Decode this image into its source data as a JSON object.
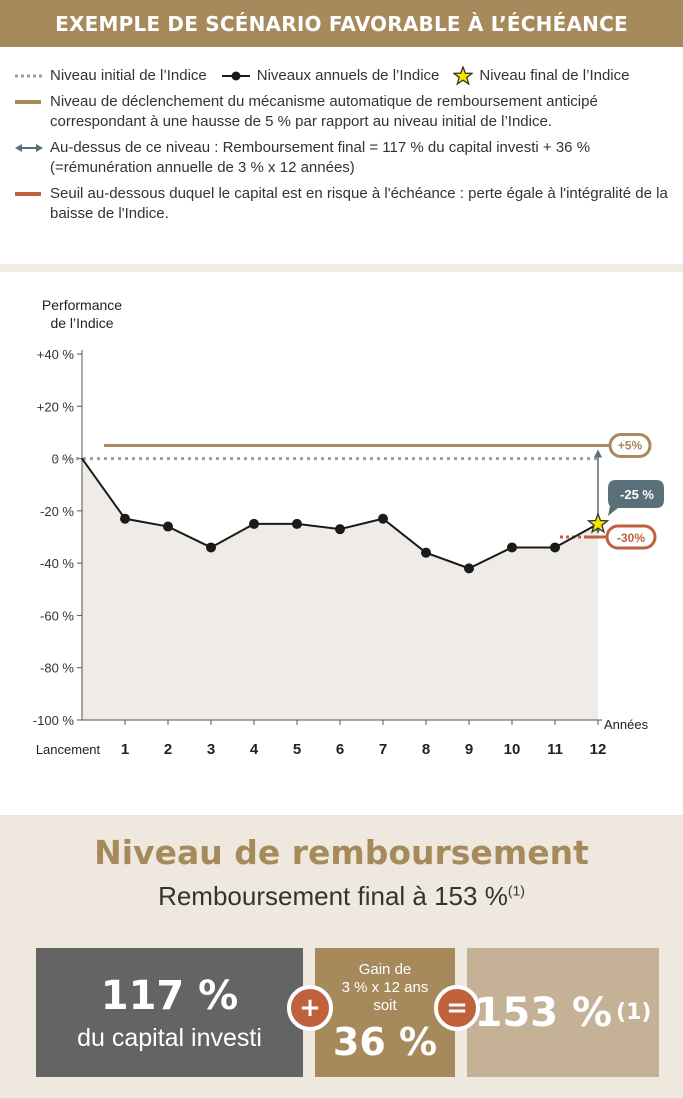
{
  "header": {
    "title": "EXEMPLE DE SCÉNARIO FAVORABLE À L’ÉCHÉANCE"
  },
  "legend": {
    "initial_level": "Niveau initial de l’Indice",
    "annual_levels": "Niveaux annuels de l’Indice",
    "final_level": "Niveau final de l’Indice",
    "trigger_level": "Niveau de déclenchement du mécanisme automatique de remboursement anticipé correspondant à une hausse de 5 % par rapport au niveau initial de l’Indice.",
    "above_level": "Au-dessus de ce niveau : Remboursement final = 117 % du capital investi + 36 % (=rémunération annuelle de 3 % x 12 années)",
    "risk_threshold": "Seuil au-dessous duquel le capital est en risque à l'échéance : perte égale à l'intégralité de la baisse de l'Indice."
  },
  "colors": {
    "gold": "#a68a5c",
    "grey_dots": "#9e9e9e",
    "line": "#1a1a1a",
    "area": "#efebe6",
    "teal": "#5a7078",
    "red": "#c0613e",
    "star": "#f5e400"
  },
  "chart_data": {
    "type": "line",
    "ylabel": "Performance de l’Indice",
    "xlabel": "Années",
    "ylim": [
      -100,
      40
    ],
    "yticks": [
      40,
      20,
      0,
      -20,
      -40,
      -60,
      -80,
      -100
    ],
    "ytick_labels": [
      "+40 %",
      "+20 %",
      "0 %",
      "-20 %",
      "-40 %",
      "-60 %",
      "-80 %",
      "-100 %"
    ],
    "categories": [
      "Lancement",
      "1",
      "2",
      "3",
      "4",
      "5",
      "6",
      "7",
      "8",
      "9",
      "10",
      "11",
      "12"
    ],
    "series": [
      {
        "name": "Niveaux annuels de l’Indice",
        "values": [
          0,
          -23,
          -26,
          -34,
          -25,
          -25,
          -27,
          -23,
          -36,
          -42,
          -34,
          -34,
          -25
        ]
      }
    ],
    "trigger_level": 5,
    "initial_level": 0,
    "risk_threshold": -30,
    "annotations": {
      "trigger": "+5%",
      "final": "-25 %",
      "threshold": "-30%"
    }
  },
  "bottom": {
    "heading": "Niveau de remboursement",
    "subtitle": "Remboursement final à 153 %",
    "subtitle_note": "(1)",
    "box_capital_value": "117 %",
    "box_capital_label": "du capital investi",
    "box_gain_line1": "Gain de",
    "box_gain_line2": "3 % x 12 ans",
    "box_gain_line3": "soit",
    "box_gain_value": "36 %",
    "box_total_value": "153 %",
    "box_total_note": "(1)",
    "plus_symbol": "+",
    "equals_symbol": "="
  }
}
